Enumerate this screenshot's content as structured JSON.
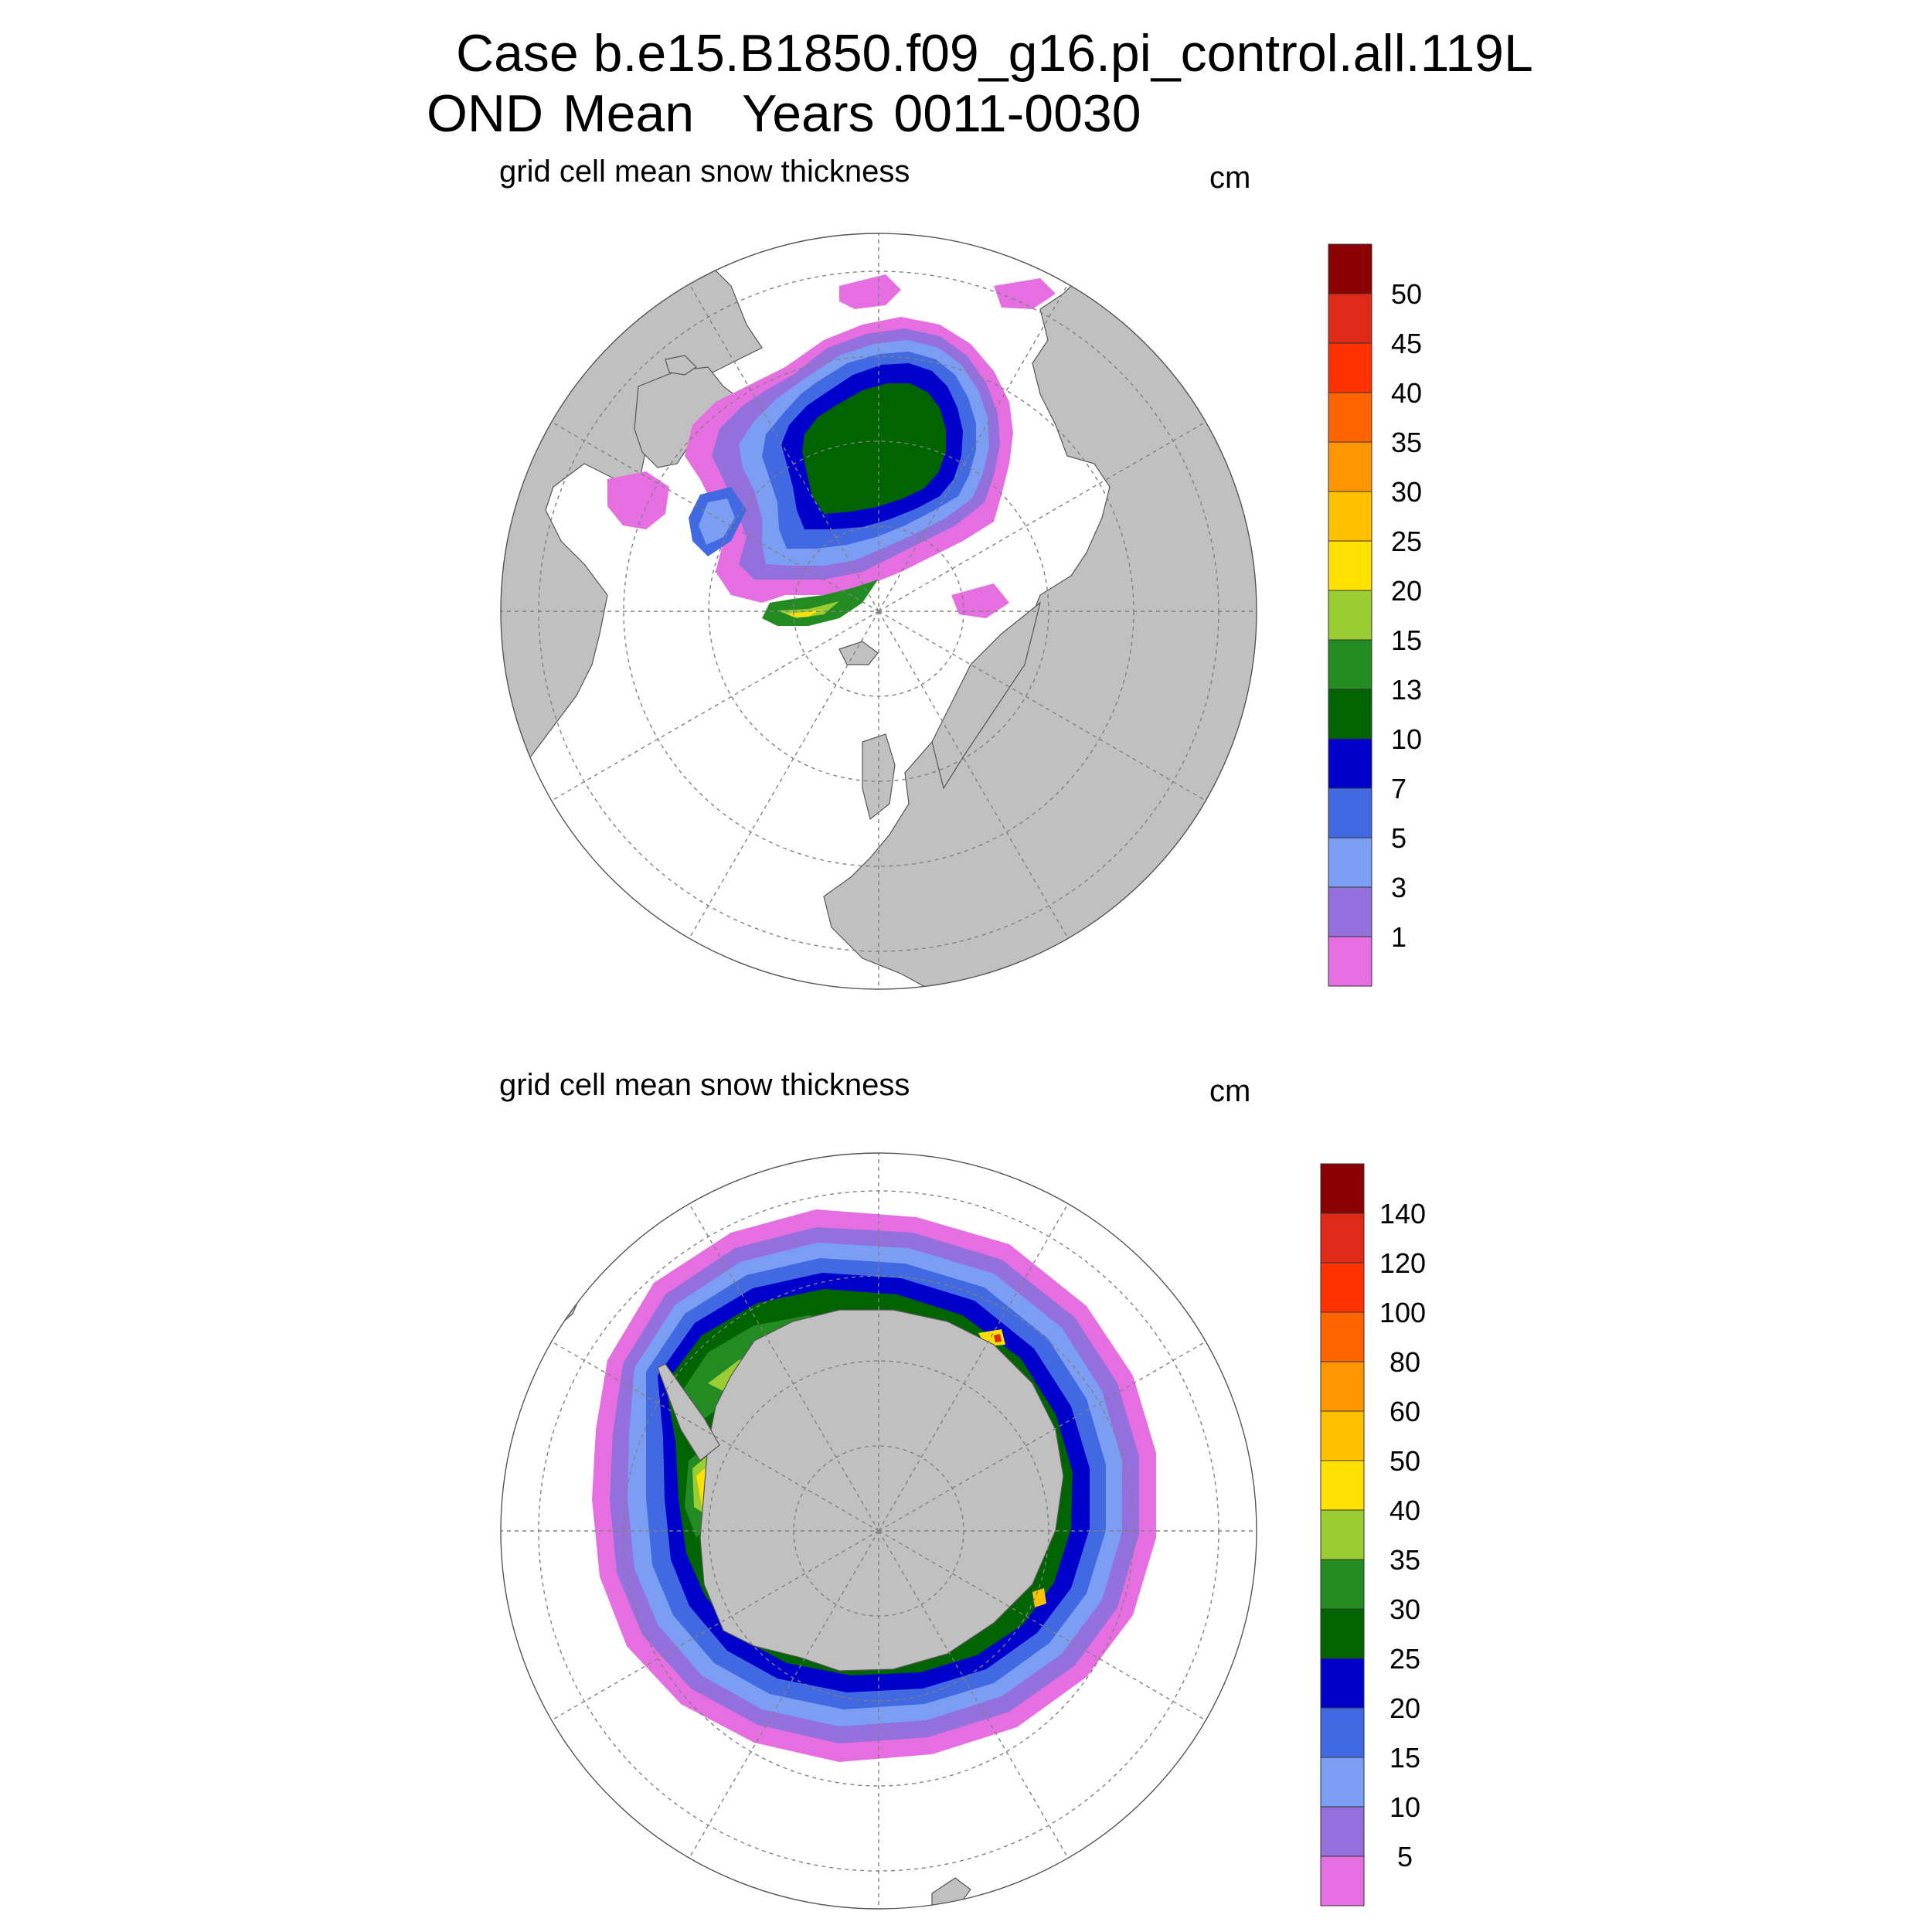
{
  "header": {
    "line1": "Case b.e15.B1850.f09_g16.pi_control.all.119L",
    "line2_left": "OND Mean",
    "line2_right": "Years 0011-0030"
  },
  "colors": {
    "land": "#c0c0c0",
    "grid": "#808080",
    "palette": [
      "#e56ee0",
      "#9370db",
      "#7b9ef2",
      "#4169e1",
      "#0000cd",
      "#006400",
      "#228b22",
      "#9acd32",
      "#ffe000",
      "#ffc000",
      "#ff9500",
      "#ff6400",
      "#ff3200",
      "#dd2b17",
      "#8b0000"
    ]
  },
  "panels": [
    {
      "title": "grid cell mean snow thickness",
      "units": "cm",
      "hemisphere": "north",
      "colorbar_labels": [
        "1",
        "3",
        "5",
        "7",
        "10",
        "13",
        "15",
        "20",
        "25",
        "30",
        "35",
        "40",
        "45",
        "50"
      ]
    },
    {
      "title": "grid cell mean snow thickness",
      "units": "cm",
      "hemisphere": "south",
      "colorbar_labels": [
        "5",
        "10",
        "15",
        "20",
        "25",
        "30",
        "35",
        "40",
        "50",
        "60",
        "80",
        "100",
        "120",
        "140"
      ]
    }
  ]
}
